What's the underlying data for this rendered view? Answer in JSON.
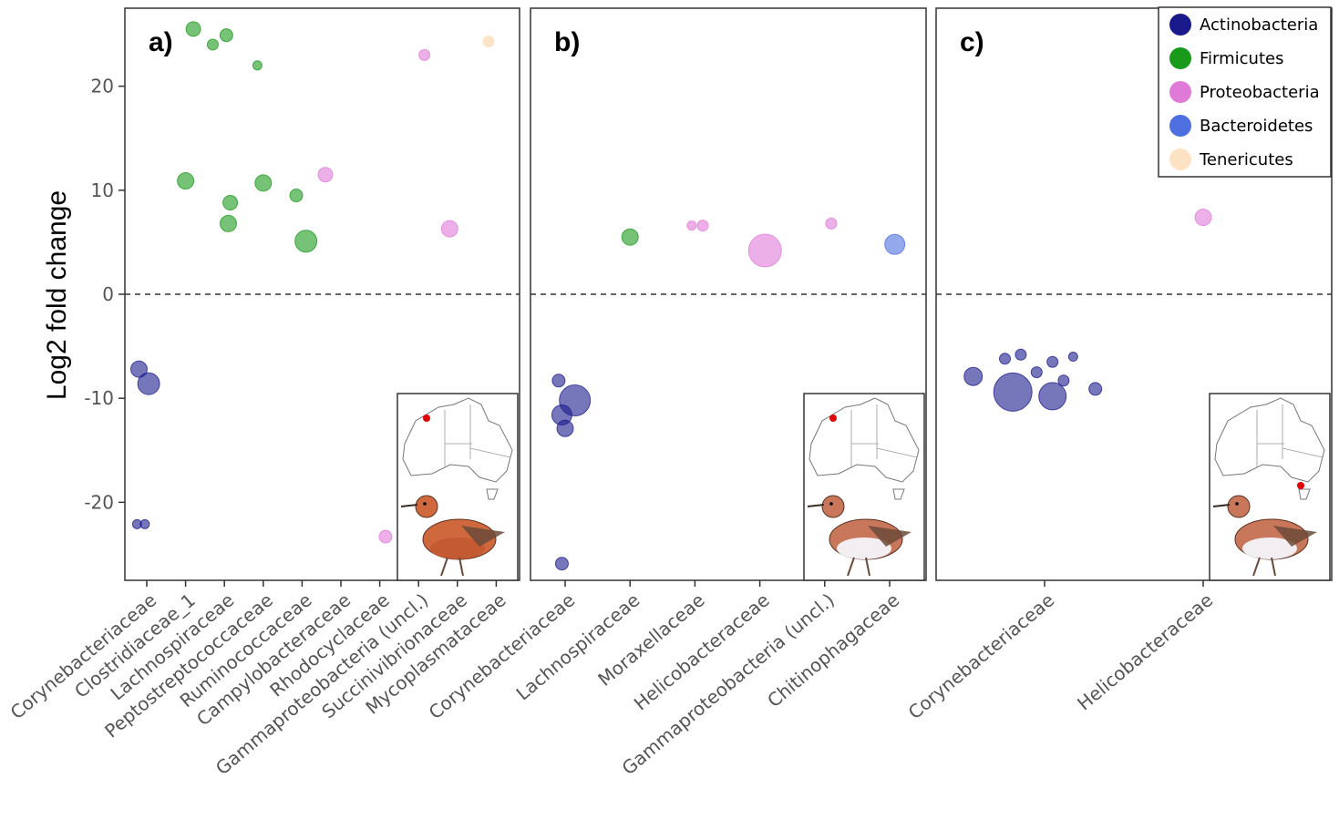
{
  "chart_data": {
    "type": "scatter",
    "ylabel": "Log2 fold change",
    "ylim": [
      -27.5,
      27.5
    ],
    "yticks": [
      -20,
      -10,
      0,
      10,
      20
    ],
    "reference_line_y": 0,
    "legend": {
      "placement": "top-right",
      "entries": [
        {
          "name": "Actinobacteria",
          "color": "#1a1a8c"
        },
        {
          "name": "Firmicutes",
          "color": "#1a9a1a"
        },
        {
          "name": "Proteobacteria",
          "color": "#e07ad8"
        },
        {
          "name": "Bacteroidetes",
          "color": "#4d6fe0"
        },
        {
          "name": "Tenericutes",
          "color": "#fde2c4"
        }
      ]
    },
    "panels": [
      {
        "label": "a)",
        "categories": [
          "Corynebacteriaceae",
          "Clostridiaceae_1",
          "Lachnospiraceae",
          "Peptostreptococcaceae",
          "Ruminococcaceae",
          "Campylobacteraceae",
          "Rhodocyclaceae",
          "Gammaproteobacteria (uncl.)",
          "Succinivibrionaceae",
          "Mycoplasmataceae"
        ],
        "points": [
          {
            "cat": 0,
            "dx": -0.2,
            "y": -7.2,
            "size": 9,
            "phylum": "Actinobacteria"
          },
          {
            "cat": 0,
            "dx": 0.05,
            "y": -8.6,
            "size": 12,
            "phylum": "Actinobacteria"
          },
          {
            "cat": 0,
            "dx": -0.25,
            "y": -22.1,
            "size": 5,
            "phylum": "Actinobacteria"
          },
          {
            "cat": 0,
            "dx": -0.05,
            "y": -22.1,
            "size": 5,
            "phylum": "Actinobacteria"
          },
          {
            "cat": 1,
            "dx": 0.2,
            "y": 25.5,
            "size": 8,
            "phylum": "Firmicutes"
          },
          {
            "cat": 1,
            "dx": 0.0,
            "y": 10.9,
            "size": 9,
            "phylum": "Firmicutes"
          },
          {
            "cat": 2,
            "dx": -0.3,
            "y": 24.0,
            "size": 6,
            "phylum": "Firmicutes"
          },
          {
            "cat": 2,
            "dx": 0.05,
            "y": 24.9,
            "size": 7,
            "phylum": "Firmicutes"
          },
          {
            "cat": 2,
            "dx": 0.15,
            "y": 8.8,
            "size": 8,
            "phylum": "Firmicutes"
          },
          {
            "cat": 2,
            "dx": 0.1,
            "y": 6.8,
            "size": 9,
            "phylum": "Firmicutes"
          },
          {
            "cat": 3,
            "dx": -0.15,
            "y": 22.0,
            "size": 5,
            "phylum": "Firmicutes"
          },
          {
            "cat": 3,
            "dx": 0.0,
            "y": 10.7,
            "size": 9,
            "phylum": "Firmicutes"
          },
          {
            "cat": 4,
            "dx": -0.15,
            "y": 9.5,
            "size": 7,
            "phylum": "Firmicutes"
          },
          {
            "cat": 4,
            "dx": 0.1,
            "y": 5.1,
            "size": 12,
            "phylum": "Firmicutes"
          },
          {
            "cat": 5,
            "dx": -0.4,
            "y": 11.5,
            "size": 8,
            "phylum": "Proteobacteria"
          },
          {
            "cat": 7,
            "dx": 0.15,
            "y": 23.0,
            "size": 6,
            "phylum": "Proteobacteria"
          },
          {
            "cat": 7,
            "dx": -0.85,
            "y": -23.3,
            "size": 7,
            "phylum": "Proteobacteria"
          },
          {
            "cat": 8,
            "dx": -0.2,
            "y": 6.3,
            "size": 9,
            "phylum": "Proteobacteria"
          },
          {
            "cat": 9,
            "dx": -0.2,
            "y": 24.3,
            "size": 6,
            "phylum": "Tenericutes"
          }
        ]
      },
      {
        "label": "b)",
        "categories": [
          "Corynebacteriaceae",
          "Lachnospiraceae",
          "Moraxellaceae",
          "Helicobacteraceae",
          "Gammaproteobacteria (uncl.)",
          "Chitinophagaceae"
        ],
        "points": [
          {
            "cat": 0,
            "dx": -0.1,
            "y": -8.3,
            "size": 7,
            "phylum": "Actinobacteria"
          },
          {
            "cat": 0,
            "dx": 0.15,
            "y": -10.2,
            "size": 17,
            "phylum": "Actinobacteria"
          },
          {
            "cat": 0,
            "dx": -0.05,
            "y": -11.6,
            "size": 11,
            "phylum": "Actinobacteria"
          },
          {
            "cat": 0,
            "dx": 0.0,
            "y": -12.9,
            "size": 9,
            "phylum": "Actinobacteria"
          },
          {
            "cat": 0,
            "dx": -0.05,
            "y": -25.9,
            "size": 7,
            "phylum": "Actinobacteria"
          },
          {
            "cat": 1,
            "dx": 0.0,
            "y": 5.5,
            "size": 9,
            "phylum": "Firmicutes"
          },
          {
            "cat": 2,
            "dx": -0.05,
            "y": 6.6,
            "size": 5,
            "phylum": "Proteobacteria"
          },
          {
            "cat": 2,
            "dx": 0.12,
            "y": 6.6,
            "size": 6,
            "phylum": "Proteobacteria"
          },
          {
            "cat": 3,
            "dx": 0.08,
            "y": 4.2,
            "size": 18,
            "phylum": "Proteobacteria"
          },
          {
            "cat": 4,
            "dx": 0.1,
            "y": 6.8,
            "size": 6,
            "phylum": "Proteobacteria"
          },
          {
            "cat": 5,
            "dx": 0.08,
            "y": 4.8,
            "size": 11,
            "phylum": "Bacteroidetes"
          }
        ]
      },
      {
        "label": "c)",
        "categories": [
          "Corynebacteriaceae",
          "Helicobacteraceae"
        ],
        "points": [
          {
            "cat": 0,
            "dx": -0.45,
            "y": -7.9,
            "size": 10,
            "phylum": "Actinobacteria"
          },
          {
            "cat": 0,
            "dx": -0.2,
            "y": -9.4,
            "size": 21,
            "phylum": "Actinobacteria"
          },
          {
            "cat": 0,
            "dx": 0.05,
            "y": -9.8,
            "size": 15,
            "phylum": "Actinobacteria"
          },
          {
            "cat": 0,
            "dx": -0.25,
            "y": -6.2,
            "size": 6,
            "phylum": "Actinobacteria"
          },
          {
            "cat": 0,
            "dx": -0.15,
            "y": -5.8,
            "size": 6,
            "phylum": "Actinobacteria"
          },
          {
            "cat": 0,
            "dx": 0.05,
            "y": -6.5,
            "size": 6,
            "phylum": "Actinobacteria"
          },
          {
            "cat": 0,
            "dx": 0.18,
            "y": -6.0,
            "size": 5,
            "phylum": "Actinobacteria"
          },
          {
            "cat": 0,
            "dx": -0.05,
            "y": -7.5,
            "size": 6,
            "phylum": "Actinobacteria"
          },
          {
            "cat": 0,
            "dx": 0.12,
            "y": -8.3,
            "size": 6,
            "phylum": "Actinobacteria"
          },
          {
            "cat": 0,
            "dx": 0.32,
            "y": -9.1,
            "size": 7,
            "phylum": "Actinobacteria"
          },
          {
            "cat": 1,
            "dx": 0.0,
            "y": 7.4,
            "size": 9,
            "phylum": "Proteobacteria"
          }
        ]
      }
    ]
  }
}
